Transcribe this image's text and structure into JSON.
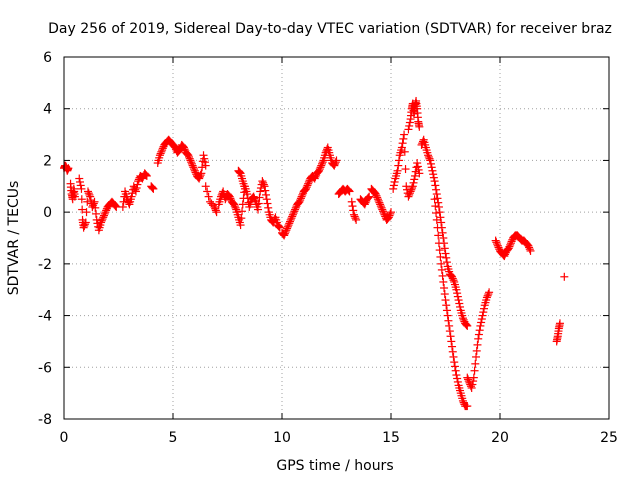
{
  "chart_data": {
    "type": "scatter",
    "title": "Day 256 of 2019, Sidereal Day-to-day VTEC variation (SDTVAR) for receiver braz",
    "xlabel": "GPS time / hours",
    "ylabel": "SDTVAR / TECUs",
    "xlim": [
      0,
      25
    ],
    "ylim": [
      -8,
      6
    ],
    "xticks": [
      0,
      5,
      10,
      15,
      20,
      25
    ],
    "yticks": [
      -8,
      -6,
      -4,
      -2,
      0,
      2,
      4,
      6
    ],
    "xtick_labels": [
      "0",
      "5",
      "10",
      "15",
      "20",
      "25"
    ],
    "ytick_labels": [
      "-8",
      "-6",
      "-4",
      "-2",
      "0",
      "2",
      "4",
      "6"
    ],
    "grid": true,
    "marker": "+",
    "color": "#ff0000",
    "series": [
      {
        "name": "SDTVAR",
        "segments": [
          {
            "x": [
              0.0,
              0.05,
              0.1,
              0.15,
              0.2
            ],
            "y": [
              1.7,
              1.8,
              1.75,
              1.6,
              1.7
            ]
          },
          {
            "x": [
              0.3,
              0.35,
              0.4,
              0.45,
              0.5
            ],
            "y": [
              1.1,
              0.7,
              0.5,
              0.9,
              0.6
            ]
          },
          {
            "x": [
              0.7,
              0.8,
              0.85,
              0.9,
              1.0,
              1.1,
              1.2,
              1.3,
              1.4,
              1.5,
              1.6,
              1.7,
              1.8,
              1.9,
              2.0,
              2.1,
              2.2,
              2.3,
              2.4
            ],
            "y": [
              1.3,
              0.9,
              -0.3,
              -0.6,
              -0.4,
              0.8,
              0.6,
              0.2,
              0.4,
              -0.3,
              -0.7,
              -0.4,
              -0.2,
              0.0,
              0.2,
              0.3,
              0.4,
              0.3,
              0.2
            ]
          },
          {
            "x": [
              2.7,
              2.8,
              2.9,
              3.0,
              3.1,
              3.2,
              3.3,
              3.4,
              3.5,
              3.6,
              3.7,
              3.8
            ],
            "y": [
              0.2,
              0.8,
              0.5,
              0.3,
              0.6,
              1.0,
              0.8,
              1.2,
              1.4,
              1.3,
              1.5,
              1.4
            ]
          },
          {
            "x": [
              4.0,
              4.1
            ],
            "y": [
              1.0,
              0.9
            ]
          },
          {
            "x": [
              4.3,
              4.4,
              4.5,
              4.6,
              4.7,
              4.8,
              4.9,
              5.0,
              5.1,
              5.2,
              5.3,
              5.4,
              5.5,
              5.6,
              5.7,
              5.8,
              5.9,
              6.0,
              6.1,
              6.2,
              6.3,
              6.4,
              6.5
            ],
            "y": [
              1.9,
              2.2,
              2.4,
              2.6,
              2.7,
              2.8,
              2.7,
              2.6,
              2.5,
              2.3,
              2.4,
              2.6,
              2.5,
              2.3,
              2.2,
              2.0,
              1.8,
              1.6,
              1.4,
              1.3,
              1.5,
              2.2,
              1.8
            ]
          },
          {
            "x": [
              6.5,
              6.7,
              6.9,
              7.0
            ],
            "y": [
              1.0,
              0.4,
              0.2,
              0.0
            ]
          },
          {
            "x": [
              7.1,
              7.2,
              7.3,
              7.4,
              7.5,
              7.6,
              7.7,
              7.8,
              7.9,
              8.0,
              8.1,
              8.2,
              8.3,
              8.4,
              8.5,
              8.6,
              8.7,
              8.8,
              8.9,
              9.0,
              9.1,
              9.2,
              9.3,
              9.4,
              9.5,
              9.6,
              9.7,
              9.8,
              9.9
            ],
            "y": [
              0.3,
              0.6,
              0.8,
              0.5,
              0.7,
              0.6,
              0.4,
              0.3,
              0.1,
              -0.2,
              -0.5,
              0.3,
              1.0,
              0.7,
              0.2,
              0.5,
              0.6,
              0.4,
              0.1,
              0.8,
              1.2,
              1.0,
              0.5,
              0.0,
              -0.3,
              -0.4,
              -0.2,
              -0.5,
              -0.6
            ]
          },
          {
            "x": [
              8.0,
              8.1,
              8.2,
              8.3
            ],
            "y": [
              1.6,
              1.5,
              1.2,
              0.9
            ]
          },
          {
            "x": [
              10.0,
              10.1,
              10.2,
              10.3,
              10.4,
              10.5,
              10.6,
              10.7,
              10.8,
              10.9,
              11.0,
              11.1,
              11.2,
              11.3,
              11.4,
              11.5,
              11.6,
              11.7,
              11.8,
              11.9,
              12.0,
              12.1,
              12.2,
              12.3,
              12.4,
              12.5
            ],
            "y": [
              -0.8,
              -0.9,
              -0.7,
              -0.5,
              -0.3,
              -0.1,
              0.1,
              0.3,
              0.4,
              0.6,
              0.8,
              0.9,
              1.1,
              1.3,
              1.4,
              1.3,
              1.5,
              1.6,
              1.8,
              2.0,
              2.3,
              2.5,
              2.2,
              1.9,
              1.8,
              2.0
            ]
          },
          {
            "x": [
              12.6,
              12.7,
              12.8,
              12.9,
              13.0,
              13.1
            ],
            "y": [
              0.7,
              0.8,
              0.9,
              0.8,
              0.9,
              0.8
            ]
          },
          {
            "x": [
              13.2,
              13.3,
              13.4
            ],
            "y": [
              0.4,
              -0.1,
              -0.3
            ]
          },
          {
            "x": [
              13.6,
              13.7,
              13.8,
              13.9,
              14.0
            ],
            "y": [
              0.5,
              0.4,
              0.3,
              0.5,
              0.6
            ]
          },
          {
            "x": [
              14.1,
              14.2,
              14.3,
              14.4,
              14.5,
              14.6,
              14.7,
              14.8,
              14.9,
              15.0
            ],
            "y": [
              0.9,
              0.8,
              0.7,
              0.5,
              0.3,
              0.1,
              -0.1,
              -0.3,
              -0.2,
              0.0
            ]
          },
          {
            "x": [
              15.1,
              15.2,
              15.3,
              15.4,
              15.5,
              15.6,
              15.7,
              15.8,
              15.9,
              16.0,
              16.1,
              16.2,
              16.3
            ],
            "y": [
              0.9,
              1.3,
              1.6,
              2.2,
              2.5,
              3.0,
              1.0,
              0.6,
              0.8,
              1.0,
              1.4,
              1.9,
              1.5
            ]
          },
          {
            "x": [
              15.8,
              15.9,
              15.95,
              16.0,
              16.05,
              16.1,
              16.15,
              16.2,
              16.25,
              16.3
            ],
            "y": [
              3.2,
              3.6,
              4.0,
              4.2,
              3.8,
              4.1,
              4.3,
              4.0,
              3.5,
              3.3
            ]
          },
          {
            "x": [
              16.4,
              16.5,
              16.6,
              16.7,
              16.8,
              16.9,
              17.0,
              17.1,
              17.2,
              17.3,
              17.4,
              17.5,
              17.6,
              17.7,
              17.8,
              17.9,
              18.0,
              18.1,
              18.2,
              18.3,
              18.4,
              18.5
            ],
            "y": [
              2.6,
              2.8,
              2.5,
              2.2,
              2.0,
              1.6,
              1.2,
              0.7,
              0.2,
              -0.4,
              -1.0,
              -1.6,
              -2.1,
              -2.4,
              -2.5,
              -2.7,
              -3.0,
              -3.4,
              -3.8,
              -4.1,
              -4.3,
              -4.4
            ]
          },
          {
            "x": [
              17.0,
              17.1,
              17.2,
              17.3,
              17.4,
              17.5,
              17.6,
              17.7,
              17.8,
              17.9,
              18.0,
              18.1,
              18.2,
              18.3,
              18.4,
              18.5
            ],
            "y": [
              0.5,
              -0.3,
              -1.2,
              -2.0,
              -2.7,
              -3.4,
              -4.0,
              -4.6,
              -5.2,
              -5.8,
              -6.3,
              -6.7,
              -7.0,
              -7.3,
              -7.5,
              -7.5
            ]
          },
          {
            "x": [
              18.5,
              18.6,
              18.7,
              18.8,
              18.9,
              19.0,
              19.1,
              19.2,
              19.3,
              19.4,
              19.5
            ],
            "y": [
              -6.4,
              -6.6,
              -6.8,
              -6.4,
              -5.6,
              -4.9,
              -4.4,
              -4.0,
              -3.6,
              -3.3,
              -3.1
            ]
          },
          {
            "x": [
              19.8,
              19.9,
              20.0,
              20.1,
              20.2,
              20.3,
              20.4,
              20.5,
              20.6,
              20.7,
              20.8,
              20.9,
              21.0,
              21.1,
              21.2,
              21.3,
              21.4
            ],
            "y": [
              -1.1,
              -1.3,
              -1.5,
              -1.6,
              -1.7,
              -1.5,
              -1.4,
              -1.2,
              -1.0,
              -0.9,
              -0.9,
              -1.0,
              -1.1,
              -1.1,
              -1.2,
              -1.3,
              -1.5
            ]
          },
          {
            "x": [
              22.6,
              22.65,
              22.7,
              22.75
            ],
            "y": [
              -5.0,
              -4.8,
              -4.5,
              -4.3
            ]
          },
          {
            "x": [
              22.95
            ],
            "y": [
              -2.5
            ]
          }
        ]
      }
    ]
  }
}
